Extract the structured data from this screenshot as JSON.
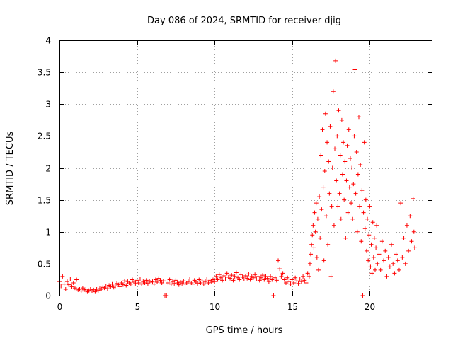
{
  "chart_data": {
    "type": "scatter",
    "title": "Day 086 of 2024, SRMTID for receiver djig",
    "xlabel": "GPS time / hours",
    "ylabel": "SRMTID / TECUs",
    "xlim": [
      0,
      24
    ],
    "ylim": [
      0,
      4
    ],
    "xticks": [
      "0",
      "5",
      "10",
      "15",
      "20"
    ],
    "xtick_values": [
      0,
      5,
      10,
      15,
      20
    ],
    "yticks": [
      "0",
      "0.5",
      "1",
      "1.5",
      "2",
      "2.5",
      "3",
      "3.5",
      "4"
    ],
    "ytick_values": [
      0,
      0.5,
      1,
      1.5,
      2,
      2.5,
      3,
      3.5,
      4
    ],
    "grid": true,
    "marker": "plus",
    "series": [
      {
        "name": "SRMTID",
        "color": "#ff0000",
        "points": [
          [
            0.0,
            0.22
          ],
          [
            0.1,
            0.15
          ],
          [
            0.2,
            0.3
          ],
          [
            0.3,
            0.18
          ],
          [
            0.4,
            0.1
          ],
          [
            0.5,
            0.22
          ],
          [
            0.6,
            0.17
          ],
          [
            0.7,
            0.26
          ],
          [
            0.8,
            0.14
          ],
          [
            0.9,
            0.2
          ],
          [
            1.0,
            0.12
          ],
          [
            1.1,
            0.25
          ],
          [
            1.2,
            0.09
          ],
          [
            1.3,
            0.1
          ],
          [
            1.4,
            0.07
          ],
          [
            1.5,
            0.12
          ],
          [
            1.6,
            0.09
          ],
          [
            1.7,
            0.1
          ],
          [
            1.8,
            0.06
          ],
          [
            1.9,
            0.08
          ],
          [
            2.0,
            0.1
          ],
          [
            2.1,
            0.07
          ],
          [
            2.2,
            0.09
          ],
          [
            2.3,
            0.06
          ],
          [
            2.4,
            0.1
          ],
          [
            2.5,
            0.08
          ],
          [
            2.6,
            0.11
          ],
          [
            2.7,
            0.1
          ],
          [
            2.8,
            0.13
          ],
          [
            2.9,
            0.12
          ],
          [
            3.0,
            0.15
          ],
          [
            3.1,
            0.11
          ],
          [
            3.2,
            0.16
          ],
          [
            3.3,
            0.14
          ],
          [
            3.4,
            0.18
          ],
          [
            3.5,
            0.13
          ],
          [
            3.6,
            0.15
          ],
          [
            3.7,
            0.19
          ],
          [
            3.8,
            0.17
          ],
          [
            3.9,
            0.14
          ],
          [
            4.0,
            0.2
          ],
          [
            4.1,
            0.17
          ],
          [
            4.2,
            0.23
          ],
          [
            4.3,
            0.16
          ],
          [
            4.4,
            0.22
          ],
          [
            4.5,
            0.2
          ],
          [
            4.6,
            0.18
          ],
          [
            4.7,
            0.25
          ],
          [
            4.8,
            0.21
          ],
          [
            4.9,
            0.19
          ],
          [
            5.0,
            0.24
          ],
          [
            5.1,
            0.2
          ],
          [
            5.2,
            0.26
          ],
          [
            5.3,
            0.18
          ],
          [
            5.4,
            0.22
          ],
          [
            5.5,
            0.2
          ],
          [
            5.6,
            0.24
          ],
          [
            5.7,
            0.19
          ],
          [
            5.8,
            0.23
          ],
          [
            5.9,
            0.21
          ],
          [
            6.0,
            0.22
          ],
          [
            6.1,
            0.18
          ],
          [
            6.2,
            0.25
          ],
          [
            6.3,
            0.21
          ],
          [
            6.4,
            0.27
          ],
          [
            6.5,
            0.24
          ],
          [
            6.6,
            0.2
          ],
          [
            6.7,
            0.23
          ],
          [
            6.8,
            0.0
          ],
          [
            6.9,
            0.0
          ],
          [
            7.0,
            0.2
          ],
          [
            7.1,
            0.25
          ],
          [
            7.2,
            0.18
          ],
          [
            7.3,
            0.22
          ],
          [
            7.4,
            0.19
          ],
          [
            7.5,
            0.24
          ],
          [
            7.6,
            0.2
          ],
          [
            7.7,
            0.17
          ],
          [
            7.8,
            0.21
          ],
          [
            7.9,
            0.19
          ],
          [
            8.0,
            0.23
          ],
          [
            8.1,
            0.18
          ],
          [
            8.2,
            0.2
          ],
          [
            8.3,
            0.22
          ],
          [
            8.4,
            0.26
          ],
          [
            8.5,
            0.2
          ],
          [
            8.6,
            0.18
          ],
          [
            8.7,
            0.24
          ],
          [
            8.8,
            0.21
          ],
          [
            8.9,
            0.19
          ],
          [
            9.0,
            0.25
          ],
          [
            9.1,
            0.2
          ],
          [
            9.2,
            0.23
          ],
          [
            9.3,
            0.18
          ],
          [
            9.4,
            0.22
          ],
          [
            9.5,
            0.26
          ],
          [
            9.6,
            0.2
          ],
          [
            9.7,
            0.24
          ],
          [
            9.8,
            0.21
          ],
          [
            9.9,
            0.25
          ],
          [
            10.0,
            0.22
          ],
          [
            10.1,
            0.3
          ],
          [
            10.2,
            0.25
          ],
          [
            10.3,
            0.33
          ],
          [
            10.4,
            0.28
          ],
          [
            10.5,
            0.24
          ],
          [
            10.6,
            0.31
          ],
          [
            10.7,
            0.26
          ],
          [
            10.8,
            0.35
          ],
          [
            10.9,
            0.29
          ],
          [
            11.0,
            0.27
          ],
          [
            11.1,
            0.32
          ],
          [
            11.2,
            0.24
          ],
          [
            11.3,
            0.3
          ],
          [
            11.4,
            0.36
          ],
          [
            11.5,
            0.28
          ],
          [
            11.6,
            0.25
          ],
          [
            11.7,
            0.33
          ],
          [
            11.8,
            0.29
          ],
          [
            11.9,
            0.26
          ],
          [
            12.0,
            0.31
          ],
          [
            12.1,
            0.27
          ],
          [
            12.2,
            0.34
          ],
          [
            12.3,
            0.25
          ],
          [
            12.4,
            0.3
          ],
          [
            12.5,
            0.28
          ],
          [
            12.6,
            0.33
          ],
          [
            12.7,
            0.26
          ],
          [
            12.8,
            0.3
          ],
          [
            12.9,
            0.24
          ],
          [
            13.0,
            0.28
          ],
          [
            13.1,
            0.32
          ],
          [
            13.2,
            0.25
          ],
          [
            13.3,
            0.3
          ],
          [
            13.4,
            0.27
          ],
          [
            13.5,
            0.22
          ],
          [
            13.6,
            0.3
          ],
          [
            13.7,
            0.25
          ],
          [
            13.8,
            0.0
          ],
          [
            13.9,
            0.28
          ],
          [
            14.0,
            0.24
          ],
          [
            14.1,
            0.55
          ],
          [
            14.2,
            0.42
          ],
          [
            14.3,
            0.3
          ],
          [
            14.4,
            0.35
          ],
          [
            14.5,
            0.25
          ],
          [
            14.6,
            0.2
          ],
          [
            14.7,
            0.28
          ],
          [
            14.8,
            0.22
          ],
          [
            14.9,
            0.18
          ],
          [
            15.0,
            0.25
          ],
          [
            15.1,
            0.2
          ],
          [
            15.2,
            0.28
          ],
          [
            15.3,
            0.23
          ],
          [
            15.4,
            0.19
          ],
          [
            15.5,
            0.26
          ],
          [
            15.6,
            0.22
          ],
          [
            15.7,
            0.3
          ],
          [
            15.8,
            0.24
          ],
          [
            15.9,
            0.2
          ],
          [
            16.0,
            0.35
          ],
          [
            16.1,
            0.3
          ],
          [
            16.15,
            0.5
          ],
          [
            16.2,
            0.65
          ],
          [
            16.25,
            0.8
          ],
          [
            16.3,
            0.95
          ],
          [
            16.35,
            1.1
          ],
          [
            16.4,
            0.75
          ],
          [
            16.45,
            1.3
          ],
          [
            16.5,
            1.0
          ],
          [
            16.55,
            1.45
          ],
          [
            16.6,
            0.6
          ],
          [
            16.65,
            1.2
          ],
          [
            16.7,
            0.4
          ],
          [
            16.75,
            1.55
          ],
          [
            16.8,
            0.9
          ],
          [
            16.85,
            2.2
          ],
          [
            16.9,
            1.35
          ],
          [
            16.95,
            2.6
          ],
          [
            17.0,
            1.7
          ],
          [
            17.05,
            0.55
          ],
          [
            17.1,
            1.95
          ],
          [
            17.15,
            2.85
          ],
          [
            17.2,
            1.25
          ],
          [
            17.25,
            2.4
          ],
          [
            17.3,
            0.8
          ],
          [
            17.35,
            2.1
          ],
          [
            17.4,
            1.6
          ],
          [
            17.45,
            2.65
          ],
          [
            17.5,
            0.3
          ],
          [
            17.55,
            1.4
          ],
          [
            17.6,
            2.0
          ],
          [
            17.65,
            3.2
          ],
          [
            17.7,
            1.1
          ],
          [
            17.75,
            2.3
          ],
          [
            17.8,
            3.68
          ],
          [
            17.85,
            1.8
          ],
          [
            17.9,
            2.5
          ],
          [
            17.95,
            1.4
          ],
          [
            18.0,
            2.9
          ],
          [
            18.05,
            1.6
          ],
          [
            18.1,
            2.2
          ],
          [
            18.15,
            1.2
          ],
          [
            18.2,
            2.75
          ],
          [
            18.25,
            1.9
          ],
          [
            18.3,
            2.4
          ],
          [
            18.35,
            1.5
          ],
          [
            18.4,
            2.1
          ],
          [
            18.45,
            0.9
          ],
          [
            18.5,
            1.8
          ],
          [
            18.55,
            2.35
          ],
          [
            18.6,
            1.3
          ],
          [
            18.65,
            2.6
          ],
          [
            18.7,
            1.7
          ],
          [
            18.75,
            2.15
          ],
          [
            18.8,
            1.45
          ],
          [
            18.85,
            2.0
          ],
          [
            18.9,
            1.2
          ],
          [
            18.95,
            1.75
          ],
          [
            19.0,
            2.5
          ],
          [
            19.05,
            3.54
          ],
          [
            19.1,
            1.6
          ],
          [
            19.15,
            2.25
          ],
          [
            19.2,
            1.0
          ],
          [
            19.25,
            1.9
          ],
          [
            19.3,
            2.8
          ],
          [
            19.35,
            1.4
          ],
          [
            19.4,
            2.05
          ],
          [
            19.45,
            0.85
          ],
          [
            19.5,
            1.65
          ],
          [
            19.55,
            0.0
          ],
          [
            19.6,
            1.3
          ],
          [
            19.65,
            2.4
          ],
          [
            19.7,
            1.05
          ],
          [
            19.75,
            1.5
          ],
          [
            19.8,
            0.7
          ],
          [
            19.85,
            1.2
          ],
          [
            19.9,
            0.55
          ],
          [
            19.95,
            0.95
          ],
          [
            20.0,
            1.4
          ],
          [
            20.05,
            0.45
          ],
          [
            20.1,
            0.8
          ],
          [
            20.15,
            0.35
          ],
          [
            20.2,
            1.15
          ],
          [
            20.25,
            0.6
          ],
          [
            20.3,
            0.9
          ],
          [
            20.35,
            0.4
          ],
          [
            20.4,
            0.75
          ],
          [
            20.45,
            1.1
          ],
          [
            20.5,
            0.5
          ],
          [
            20.6,
            0.65
          ],
          [
            20.7,
            0.4
          ],
          [
            20.8,
            0.85
          ],
          [
            20.9,
            0.55
          ],
          [
            21.0,
            0.7
          ],
          [
            21.1,
            0.3
          ],
          [
            21.2,
            0.6
          ],
          [
            21.3,
            0.45
          ],
          [
            21.4,
            0.8
          ],
          [
            21.5,
            0.5
          ],
          [
            21.6,
            0.35
          ],
          [
            21.7,
            0.65
          ],
          [
            21.8,
            0.55
          ],
          [
            21.9,
            0.4
          ],
          [
            22.0,
            1.45
          ],
          [
            22.1,
            0.6
          ],
          [
            22.2,
            0.9
          ],
          [
            22.3,
            0.5
          ],
          [
            22.4,
            1.1
          ],
          [
            22.5,
            0.7
          ],
          [
            22.6,
            1.25
          ],
          [
            22.7,
            0.85
          ],
          [
            22.8,
            1.52
          ],
          [
            22.85,
            1.0
          ],
          [
            22.9,
            0.75
          ]
        ]
      }
    ]
  }
}
